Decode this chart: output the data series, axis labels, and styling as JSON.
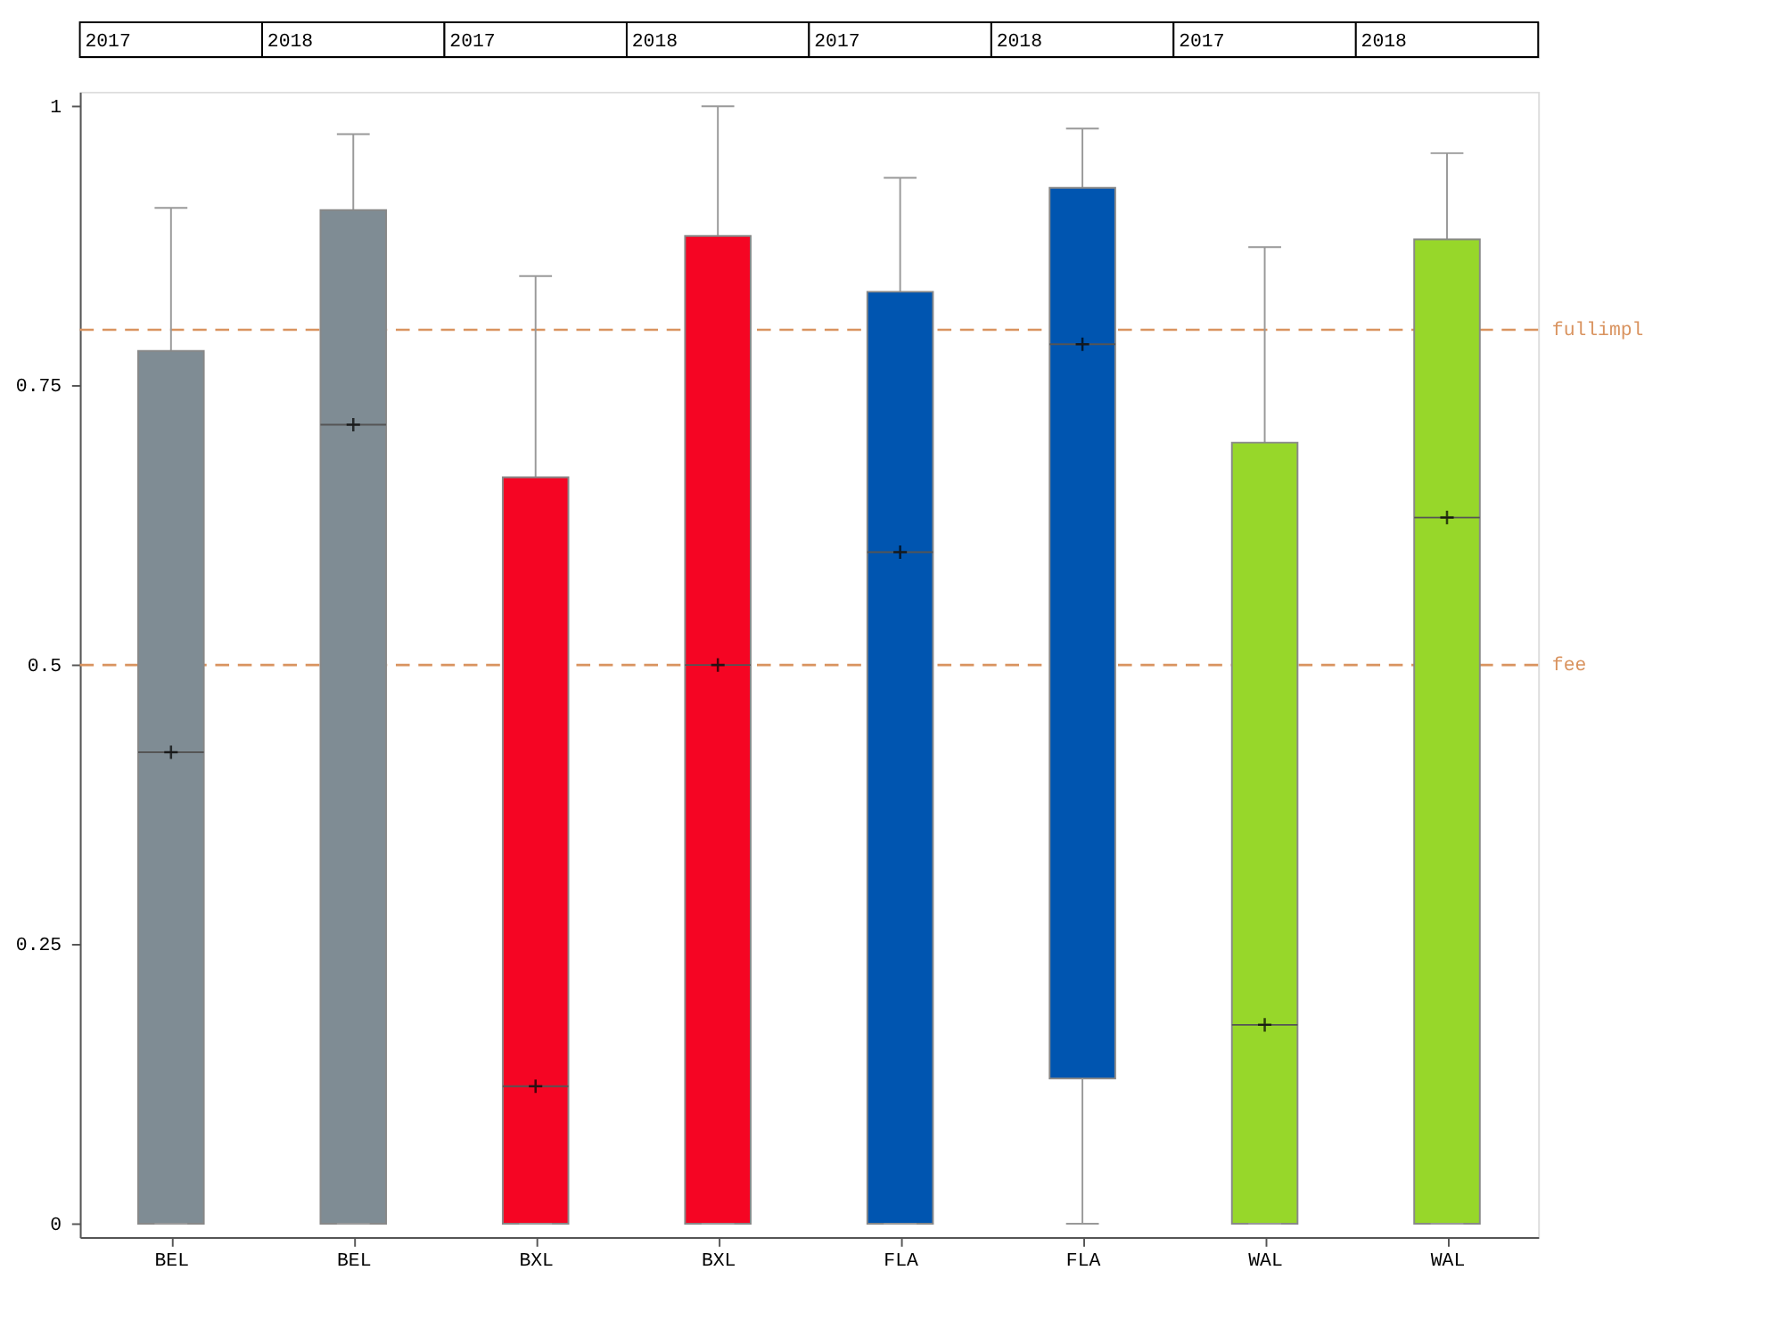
{
  "chart_data": {
    "type": "box",
    "categories": [
      "BEL",
      "BEL",
      "BXL",
      "BXL",
      "FLA",
      "FLA",
      "WAL",
      "WAL"
    ],
    "colors": [
      "#7f8c94",
      "#7f8c94",
      "#f50523",
      "#f50523",
      "#0055b0",
      "#0055b0",
      "#97d72a",
      "#97d72a"
    ],
    "boxes": [
      {
        "low": 0,
        "q1": 0,
        "median": 0.422,
        "q3": 0.781,
        "high": 0.909,
        "mean": 0.422
      },
      {
        "low": 0,
        "q1": 0,
        "median": 0.715,
        "q3": 0.907,
        "high": 0.975,
        "mean": 0.715
      },
      {
        "low": 0,
        "q1": 0,
        "median": 0.123,
        "q3": 0.668,
        "high": 0.848,
        "mean": 0.123
      },
      {
        "low": 0,
        "q1": 0,
        "median": 0.5,
        "q3": 0.884,
        "high": 1.0,
        "mean": 0.5
      },
      {
        "low": 0,
        "q1": 0,
        "median": 0.601,
        "q3": 0.834,
        "high": 0.936,
        "mean": 0.601
      },
      {
        "low": 0,
        "q1": 0.13,
        "median": 0.787,
        "q3": 0.927,
        "high": 0.98,
        "mean": 0.787
      },
      {
        "low": 0,
        "q1": 0,
        "median": 0.178,
        "q3": 0.699,
        "high": 0.874,
        "mean": 0.178
      },
      {
        "low": 0,
        "q1": 0,
        "median": 0.632,
        "q3": 0.881,
        "high": 0.958,
        "mean": 0.632
      }
    ],
    "ylim": [
      -0.012,
      1.013
    ],
    "yticks": [
      0,
      0.25,
      0.5,
      0.75,
      1
    ],
    "grid": false,
    "marker": "cross",
    "ref_lines": [
      {
        "axis": "y",
        "value": 0.8,
        "label": "fullimpl",
        "color": "#d9935f",
        "line_style": "dashed"
      },
      {
        "axis": "y",
        "value": 0.5,
        "label": "fee",
        "color": "#d9935f",
        "line_style": "dashed"
      }
    ],
    "annotations": [
      "2017",
      "2018",
      "2017",
      "2018",
      "2017",
      "2018",
      "2017",
      "2018"
    ]
  }
}
